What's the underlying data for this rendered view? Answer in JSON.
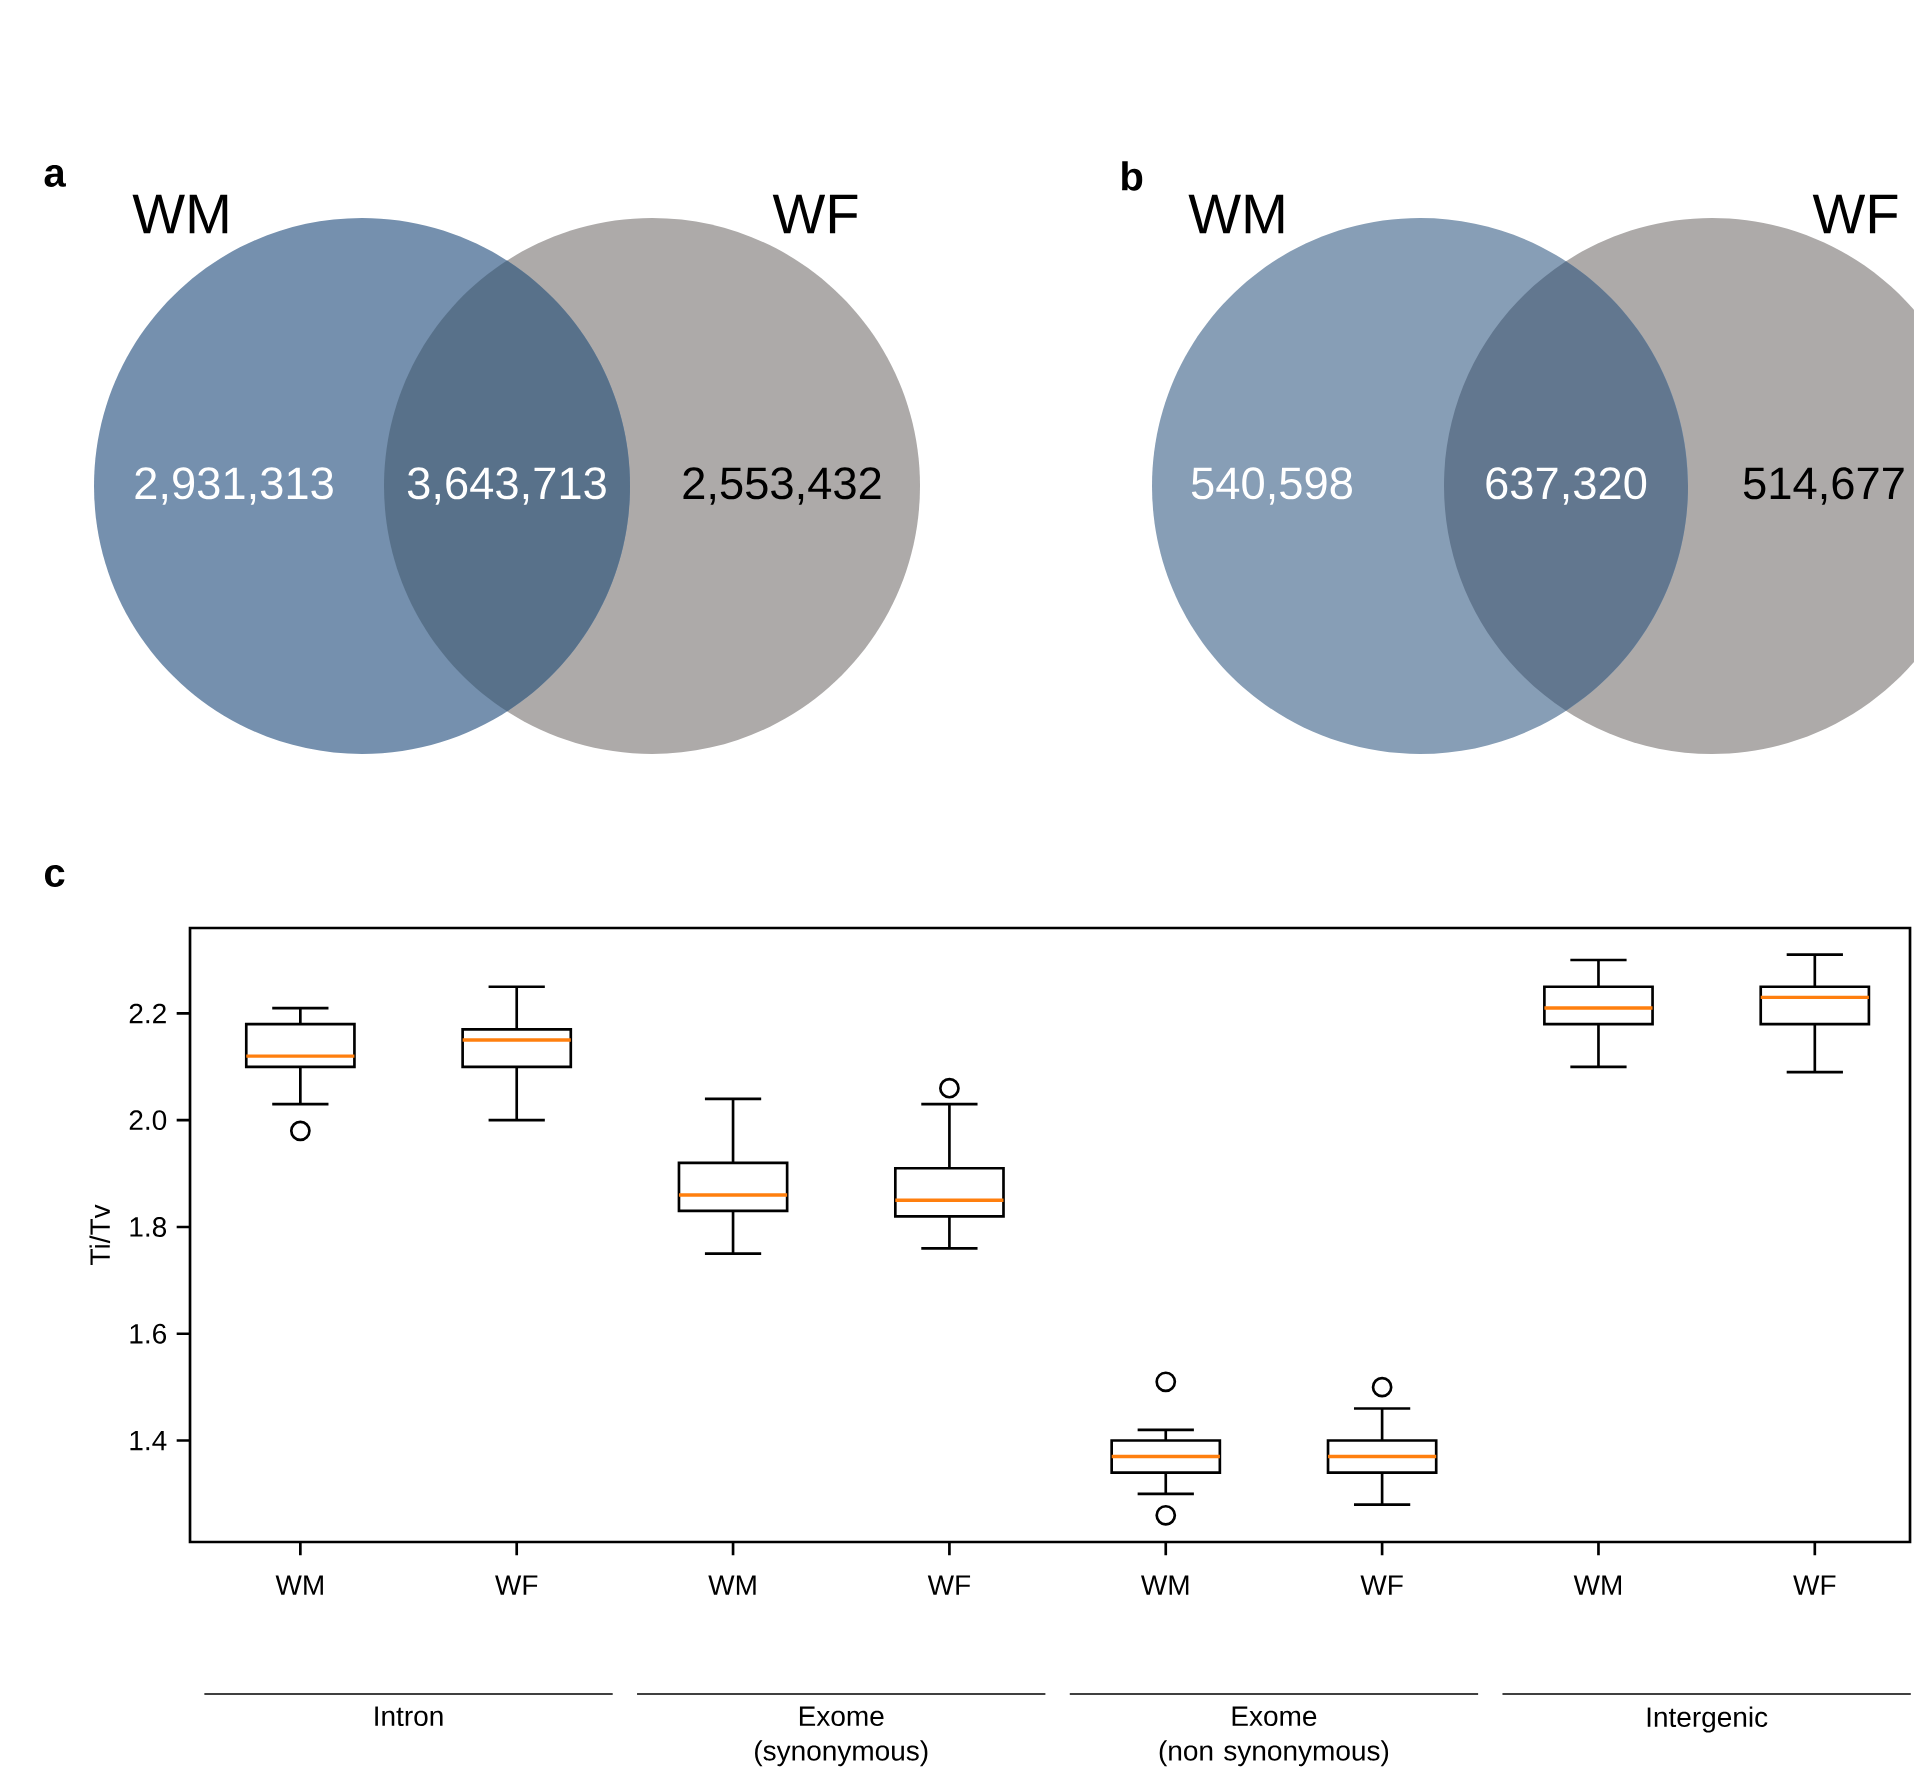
{
  "chart_data": [
    {
      "type": "other",
      "title": "a",
      "annotations": [
        "WM",
        "WF"
      ],
      "categories": [
        null,
        null,
        null
      ],
      "value_labels": [
        "2,931,313",
        "3,643,713",
        "2,553,432"
      ],
      "colors": [
        "#7590ae",
        "#58718a",
        "#adaaa9"
      ]
    },
    {
      "type": "other",
      "title": "b",
      "annotations": [
        "WM",
        "WF"
      ],
      "categories": [
        null,
        null,
        null
      ],
      "value_labels": [
        "540,598",
        "637,320",
        "514,677"
      ],
      "colors": [
        "#879eb6",
        "#62778f",
        "#adaaa9"
      ]
    },
    {
      "type": "box",
      "title": "c",
      "ylabel": "Ti/Tv",
      "categories": [
        "WM",
        "WF",
        "WM",
        "WF",
        "WM",
        "WF",
        "WM",
        "WF"
      ],
      "boxes": [
        {
          "low": 2.03,
          "q1": 2.1,
          "median": 2.12,
          "q3": 2.18,
          "high": 2.21,
          "outliers": [
            1.98
          ]
        },
        {
          "low": 2.0,
          "q1": 2.1,
          "median": 2.15,
          "q3": 2.17,
          "high": 2.25
        },
        {
          "low": 1.75,
          "q1": 1.83,
          "median": 1.86,
          "q3": 1.92,
          "high": 2.04
        },
        {
          "low": 1.76,
          "q1": 1.82,
          "median": 1.85,
          "q3": 1.91,
          "high": 2.03,
          "outliers": [
            2.06
          ]
        },
        {
          "low": 1.3,
          "q1": 1.34,
          "median": 1.37,
          "q3": 1.4,
          "high": 1.42,
          "outliers": [
            1.51,
            1.26
          ]
        },
        {
          "low": 1.28,
          "q1": 1.34,
          "median": 1.37,
          "q3": 1.4,
          "high": 1.46,
          "outliers": [
            1.5
          ]
        },
        {
          "low": 2.1,
          "q1": 2.18,
          "median": 2.21,
          "q3": 2.25,
          "high": 2.3
        },
        {
          "low": 2.09,
          "q1": 2.18,
          "median": 2.23,
          "q3": 2.25,
          "high": 2.31
        }
      ],
      "ylim": [
        1.21,
        2.36
      ],
      "yticks": [
        1.4,
        1.6,
        1.8,
        {
          "value": 2.0,
          "label": "2.0"
        },
        2.2
      ],
      "marker": "circle",
      "annotations": [
        "Intron",
        "Exome (synonymous)",
        "Exome (non synonymous)",
        "Intergenic"
      ]
    }
  ]
}
